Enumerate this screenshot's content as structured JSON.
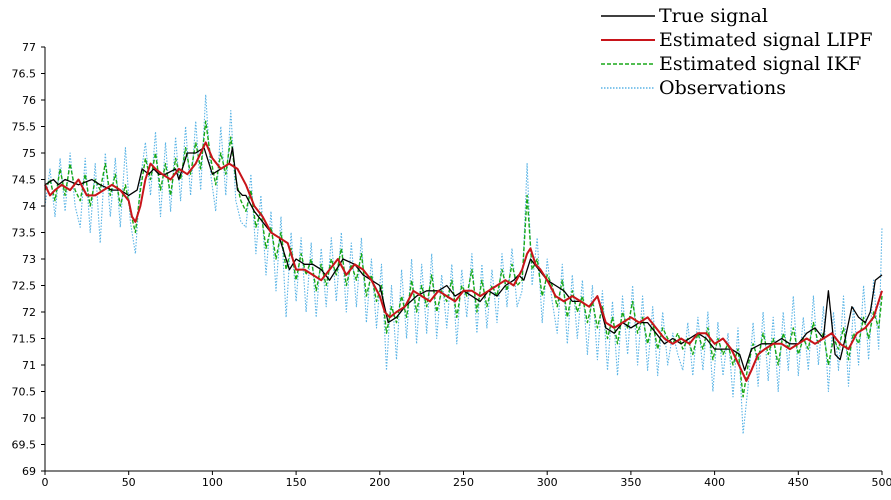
{
  "chart_data": {
    "type": "line",
    "title": "",
    "xlabel": "",
    "ylabel": "",
    "xlim": [
      0,
      500
    ],
    "ylim": [
      69,
      77
    ],
    "grid": false,
    "legend_position": "top-right",
    "x_ticks": [
      "0",
      "50",
      "100",
      "150",
      "200",
      "250",
      "300",
      "350",
      "400",
      "450",
      "500"
    ],
    "y_ticks": [
      "69",
      "69.5",
      "70",
      "70.5",
      "71",
      "71.5",
      "72",
      "72.5",
      "73",
      "73.5",
      "74",
      "74.5",
      "75",
      "75.5",
      "76",
      "76.5",
      "77"
    ],
    "series": [
      {
        "name": "True signal",
        "color": "#000000",
        "style": "solid",
        "x": [
          0,
          5,
          8,
          12,
          20,
          28,
          33,
          40,
          45,
          50,
          55,
          58,
          62,
          65,
          68,
          72,
          78,
          80,
          85,
          90,
          95,
          100,
          105,
          110,
          112,
          115,
          118,
          120,
          125,
          130,
          135,
          140,
          143,
          146,
          150,
          155,
          160,
          165,
          170,
          178,
          185,
          190,
          195,
          200,
          205,
          210,
          215,
          222,
          228,
          235,
          240,
          245,
          250,
          255,
          260,
          265,
          270,
          275,
          280,
          283,
          286,
          290,
          295,
          300,
          305,
          310,
          315,
          320,
          325,
          330,
          335,
          340,
          345,
          350,
          355,
          360,
          365,
          370,
          375,
          380,
          385,
          390,
          395,
          400,
          405,
          410,
          415,
          418,
          422,
          428,
          435,
          440,
          445,
          450,
          455,
          460,
          465,
          468,
          472,
          475,
          478,
          482,
          486,
          490,
          493,
          496,
          500
        ],
        "y": [
          74.4,
          74.5,
          74.4,
          74.5,
          74.4,
          74.5,
          74.4,
          74.3,
          74.3,
          74.2,
          74.3,
          74.7,
          74.6,
          74.7,
          74.6,
          74.6,
          74.7,
          74.5,
          75.0,
          75.0,
          75.1,
          74.6,
          74.7,
          74.8,
          75.1,
          74.3,
          74.2,
          74.2,
          73.9,
          73.7,
          73.5,
          73.4,
          73.1,
          72.8,
          73.0,
          72.9,
          72.9,
          72.8,
          72.6,
          73.0,
          72.9,
          72.7,
          72.6,
          72.5,
          71.8,
          71.9,
          72.1,
          72.3,
          72.4,
          72.4,
          72.5,
          72.3,
          72.4,
          72.3,
          72.2,
          72.4,
          72.3,
          72.5,
          72.6,
          72.7,
          72.6,
          73.0,
          72.8,
          72.6,
          72.5,
          72.4,
          72.2,
          72.2,
          72.1,
          72.3,
          71.7,
          71.6,
          71.8,
          71.7,
          71.8,
          71.8,
          71.6,
          71.4,
          71.5,
          71.4,
          71.5,
          71.6,
          71.5,
          71.3,
          71.3,
          71.3,
          71.2,
          70.9,
          71.3,
          71.4,
          71.4,
          71.5,
          71.4,
          71.4,
          71.6,
          71.7,
          71.5,
          72.4,
          71.2,
          71.1,
          71.5,
          72.1,
          71.9,
          71.8,
          72.0,
          72.6,
          72.7
        ]
      },
      {
        "name": "Estimated signal LIPF",
        "color": "#c8141a",
        "style": "solid",
        "x": [
          0,
          3,
          6,
          10,
          15,
          20,
          25,
          30,
          35,
          40,
          45,
          50,
          52,
          54,
          57,
          60,
          63,
          66,
          70,
          75,
          80,
          85,
          90,
          93,
          96,
          100,
          105,
          110,
          115,
          120,
          125,
          130,
          135,
          140,
          145,
          150,
          155,
          160,
          165,
          170,
          175,
          180,
          185,
          190,
          195,
          200,
          203,
          206,
          210,
          215,
          220,
          225,
          230,
          235,
          240,
          245,
          250,
          255,
          260,
          265,
          270,
          275,
          280,
          285,
          288,
          290,
          293,
          296,
          300,
          305,
          310,
          315,
          320,
          325,
          330,
          335,
          340,
          345,
          350,
          355,
          360,
          365,
          370,
          375,
          380,
          385,
          390,
          395,
          400,
          405,
          410,
          413,
          416,
          419,
          422,
          426,
          430,
          435,
          440,
          445,
          450,
          455,
          460,
          465,
          470,
          475,
          480,
          485,
          490,
          495,
          500
        ],
        "y": [
          74.4,
          74.2,
          74.3,
          74.4,
          74.3,
          74.5,
          74.2,
          74.2,
          74.3,
          74.4,
          74.3,
          74.1,
          73.8,
          73.7,
          74.0,
          74.5,
          74.8,
          74.7,
          74.6,
          74.5,
          74.7,
          74.6,
          74.8,
          75.0,
          75.2,
          74.9,
          74.7,
          74.8,
          74.7,
          74.4,
          74.0,
          73.8,
          73.5,
          73.4,
          73.3,
          72.8,
          72.8,
          72.7,
          72.6,
          72.8,
          73.0,
          72.7,
          72.9,
          72.8,
          72.6,
          72.3,
          72.0,
          71.9,
          72.0,
          72.1,
          72.4,
          72.3,
          72.2,
          72.4,
          72.3,
          72.2,
          72.4,
          72.4,
          72.3,
          72.4,
          72.5,
          72.6,
          72.5,
          72.8,
          73.1,
          73.2,
          72.9,
          72.8,
          72.6,
          72.3,
          72.2,
          72.3,
          72.2,
          72.1,
          72.3,
          71.8,
          71.7,
          71.8,
          71.9,
          71.8,
          71.9,
          71.7,
          71.5,
          71.4,
          71.5,
          71.4,
          71.6,
          71.6,
          71.4,
          71.5,
          71.3,
          71.1,
          70.9,
          70.7,
          70.9,
          71.2,
          71.3,
          71.4,
          71.4,
          71.3,
          71.4,
          71.5,
          71.4,
          71.5,
          71.6,
          71.4,
          71.3,
          71.6,
          71.7,
          71.9,
          72.4
        ]
      },
      {
        "name": "Estimated signal IKF",
        "color": "#18a818",
        "style": "dashed",
        "x": [
          0,
          3,
          6,
          9,
          12,
          15,
          18,
          21,
          24,
          27,
          30,
          33,
          36,
          39,
          42,
          45,
          48,
          51,
          54,
          57,
          60,
          63,
          66,
          69,
          72,
          75,
          78,
          81,
          84,
          87,
          90,
          93,
          96,
          99,
          102,
          105,
          108,
          111,
          114,
          117,
          120,
          123,
          126,
          129,
          132,
          135,
          138,
          141,
          144,
          147,
          150,
          153,
          156,
          159,
          162,
          165,
          168,
          171,
          174,
          177,
          180,
          183,
          186,
          189,
          192,
          195,
          198,
          201,
          204,
          207,
          210,
          213,
          216,
          219,
          222,
          225,
          228,
          231,
          234,
          237,
          240,
          243,
          246,
          249,
          252,
          255,
          258,
          261,
          264,
          267,
          270,
          273,
          276,
          279,
          282,
          285,
          288,
          291,
          294,
          297,
          300,
          303,
          306,
          309,
          312,
          315,
          318,
          321,
          324,
          327,
          330,
          333,
          336,
          339,
          342,
          345,
          348,
          351,
          354,
          357,
          360,
          363,
          366,
          369,
          372,
          375,
          378,
          381,
          384,
          387,
          390,
          393,
          396,
          399,
          402,
          405,
          408,
          411,
          414,
          417,
          420,
          423,
          426,
          429,
          432,
          435,
          438,
          441,
          444,
          447,
          450,
          453,
          456,
          459,
          462,
          465,
          468,
          471,
          474,
          477,
          480,
          483,
          486,
          489,
          492,
          495,
          498,
          500
        ],
        "y": [
          74.3,
          74.5,
          74.1,
          74.7,
          74.2,
          74.8,
          74.3,
          74.1,
          74.6,
          74.0,
          74.5,
          74.3,
          74.8,
          74.2,
          74.6,
          74.0,
          74.4,
          73.9,
          73.5,
          74.3,
          74.9,
          74.5,
          75.0,
          74.3,
          74.8,
          74.2,
          74.9,
          74.5,
          75.1,
          74.6,
          75.2,
          74.7,
          75.6,
          74.9,
          74.4,
          75.0,
          74.6,
          75.3,
          74.5,
          74.1,
          73.9,
          74.3,
          73.6,
          73.9,
          73.2,
          73.6,
          73.0,
          73.5,
          72.8,
          73.2,
          72.6,
          73.1,
          72.7,
          73.0,
          72.4,
          72.9,
          72.5,
          73.0,
          72.7,
          73.2,
          72.5,
          72.9,
          72.6,
          73.1,
          72.3,
          72.7,
          72.2,
          72.5,
          71.6,
          72.1,
          71.8,
          72.3,
          71.9,
          72.6,
          72.0,
          72.5,
          72.1,
          72.7,
          72.0,
          72.4,
          72.2,
          72.6,
          71.9,
          72.5,
          72.3,
          72.8,
          72.0,
          72.6,
          72.1,
          72.5,
          72.3,
          72.8,
          72.4,
          72.9,
          72.5,
          72.6,
          74.2,
          72.8,
          73.0,
          72.3,
          72.7,
          72.5,
          72.1,
          72.6,
          71.9,
          72.4,
          72.0,
          72.3,
          71.8,
          72.2,
          71.7,
          72.1,
          71.5,
          71.9,
          71.4,
          72.0,
          71.7,
          72.2,
          71.6,
          71.9,
          71.4,
          71.8,
          71.3,
          71.7,
          71.5,
          71.4,
          71.6,
          71.3,
          71.5,
          71.2,
          71.6,
          71.3,
          71.7,
          71.1,
          71.5,
          71.2,
          71.4,
          71.0,
          71.3,
          70.4,
          71.0,
          71.4,
          71.1,
          71.6,
          71.2,
          71.5,
          71.0,
          71.6,
          71.3,
          71.7,
          71.2,
          71.5,
          71.3,
          71.8,
          71.4,
          71.6,
          71.0,
          71.5,
          71.3,
          71.7,
          71.1,
          71.6,
          71.4,
          71.9,
          71.5,
          72.0,
          71.7,
          72.3
        ]
      },
      {
        "name": "Observations",
        "color": "#5ab4e6",
        "style": "dotted",
        "x": [
          0,
          3,
          6,
          9,
          12,
          15,
          18,
          21,
          24,
          27,
          30,
          33,
          36,
          39,
          42,
          45,
          48,
          51,
          54,
          57,
          60,
          63,
          66,
          69,
          72,
          75,
          78,
          81,
          84,
          87,
          90,
          93,
          96,
          99,
          102,
          105,
          108,
          111,
          114,
          117,
          120,
          123,
          126,
          129,
          132,
          135,
          138,
          141,
          144,
          147,
          150,
          153,
          156,
          159,
          162,
          165,
          168,
          171,
          174,
          177,
          180,
          183,
          186,
          189,
          192,
          195,
          198,
          201,
          204,
          207,
          210,
          213,
          216,
          219,
          222,
          225,
          228,
          231,
          234,
          237,
          240,
          243,
          246,
          249,
          252,
          255,
          258,
          261,
          264,
          267,
          270,
          273,
          276,
          279,
          282,
          285,
          288,
          291,
          294,
          297,
          300,
          303,
          306,
          309,
          312,
          315,
          318,
          321,
          324,
          327,
          330,
          333,
          336,
          339,
          342,
          345,
          348,
          351,
          354,
          357,
          360,
          363,
          366,
          369,
          372,
          375,
          378,
          381,
          384,
          387,
          390,
          393,
          396,
          399,
          402,
          405,
          408,
          411,
          414,
          417,
          420,
          423,
          426,
          429,
          432,
          435,
          438,
          441,
          444,
          447,
          450,
          453,
          456,
          459,
          462,
          465,
          468,
          471,
          474,
          477,
          480,
          483,
          486,
          489,
          492,
          495,
          498,
          500
        ],
        "y": [
          74.0,
          74.7,
          73.8,
          74.9,
          73.9,
          75.0,
          74.0,
          73.6,
          74.9,
          73.5,
          74.8,
          73.3,
          75.0,
          73.8,
          74.9,
          73.6,
          75.1,
          73.7,
          73.1,
          74.5,
          75.2,
          74.2,
          75.4,
          73.8,
          75.2,
          73.9,
          75.3,
          74.1,
          75.5,
          74.2,
          75.6,
          74.3,
          76.1,
          74.6,
          73.9,
          75.5,
          74.2,
          75.8,
          74.1,
          73.7,
          73.6,
          74.6,
          73.1,
          74.2,
          72.7,
          73.9,
          72.4,
          73.8,
          71.9,
          73.5,
          72.2,
          73.4,
          72.0,
          73.3,
          71.9,
          73.2,
          72.1,
          73.4,
          72.2,
          73.5,
          72.0,
          73.3,
          72.1,
          73.4,
          71.8,
          73.0,
          71.7,
          72.9,
          70.9,
          72.5,
          71.1,
          72.8,
          71.5,
          73.0,
          71.4,
          72.9,
          71.6,
          73.1,
          71.5,
          72.7,
          71.7,
          72.9,
          71.4,
          72.8,
          71.9,
          73.1,
          71.6,
          72.9,
          71.7,
          72.8,
          71.8,
          73.1,
          72.1,
          73.2,
          72.1,
          72.4,
          74.8,
          72.5,
          73.4,
          71.8,
          73.0,
          72.2,
          71.6,
          72.9,
          71.4,
          72.7,
          71.5,
          72.6,
          71.2,
          72.5,
          71.1,
          72.4,
          70.9,
          72.2,
          70.8,
          72.3,
          71.2,
          72.5,
          71.0,
          72.3,
          70.9,
          72.1,
          70.8,
          72.0,
          71.0,
          71.6,
          71.2,
          70.9,
          71.8,
          70.8,
          71.9,
          70.9,
          72.0,
          70.5,
          71.8,
          70.8,
          71.6,
          70.4,
          71.7,
          69.7,
          70.6,
          71.8,
          70.6,
          72.0,
          70.7,
          71.9,
          70.5,
          72.0,
          70.9,
          72.3,
          70.8,
          71.9,
          70.9,
          72.3,
          71.0,
          72.1,
          70.5,
          72.0,
          70.9,
          72.3,
          70.6,
          72.1,
          71.0,
          72.5,
          71.1,
          72.6,
          71.3,
          73.6
        ]
      }
    ]
  }
}
